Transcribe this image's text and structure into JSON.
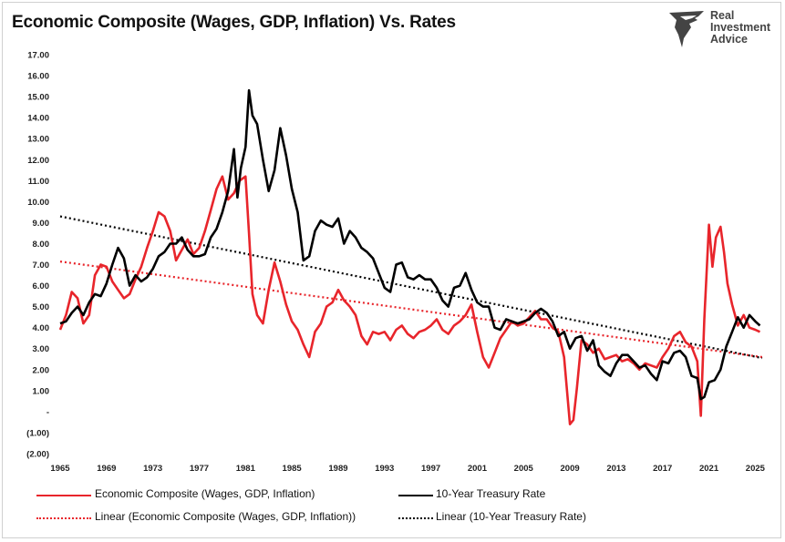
{
  "header": {
    "title": "Economic Composite (Wages, GDP, Inflation) Vs. Rates",
    "logo_lines": [
      "Real",
      "Investment",
      "Advice"
    ]
  },
  "chart_data": {
    "type": "line",
    "title": "Economic Composite (Wages, GDP, Inflation) Vs. Rates",
    "xlim": [
      1965,
      2025.6
    ],
    "ylim": [
      -2,
      17
    ],
    "x_ticks": [
      "1965",
      "1969",
      "1973",
      "1977",
      "1981",
      "1985",
      "1989",
      "1993",
      "1997",
      "2001",
      "2005",
      "2009",
      "2013",
      "2017",
      "2021",
      "2025"
    ],
    "y_ticks": [
      "17.00",
      "16.00",
      "15.00",
      "14.00",
      "13.00",
      "12.00",
      "11.00",
      "10.00",
      "9.00",
      "8.00",
      "7.00",
      "6.00",
      "5.00",
      "4.00",
      "3.00",
      "2.00",
      "1.00",
      "-",
      "(1.00)",
      "(2.00)"
    ],
    "grid": false,
    "legend_position": "bottom",
    "series": [
      {
        "name": "Economic Composite (Wages, GDP, Inflation)",
        "color": "#e8252b",
        "style": "solid",
        "x": [
          1965,
          1965.5,
          1966,
          1966.5,
          1967,
          1967.5,
          1968,
          1968.5,
          1969,
          1969.5,
          1970,
          1970.5,
          1971,
          1971.5,
          1972,
          1972.5,
          1973,
          1973.5,
          1974,
          1974.5,
          1975,
          1975.5,
          1976,
          1976.5,
          1977,
          1977.5,
          1978,
          1978.5,
          1979,
          1979.5,
          1980,
          1980.5,
          1981,
          1981.3,
          1981.6,
          1982,
          1982.5,
          1983,
          1983.5,
          1984,
          1984.5,
          1985,
          1985.5,
          1986,
          1986.5,
          1987,
          1987.5,
          1988,
          1988.5,
          1989,
          1989.5,
          1990,
          1990.5,
          1991,
          1991.5,
          1992,
          1992.5,
          1993,
          1993.5,
          1994,
          1994.5,
          1995,
          1995.5,
          1996,
          1996.5,
          1997,
          1997.5,
          1998,
          1998.5,
          1999,
          1999.5,
          2000,
          2000.5,
          2001,
          2001.5,
          2002,
          2002.5,
          2003,
          2003.5,
          2004,
          2004.5,
          2005,
          2005.5,
          2006,
          2006.5,
          2007,
          2007.5,
          2008,
          2008.5,
          2009,
          2009.3,
          2009.6,
          2010,
          2010.5,
          2011,
          2011.5,
          2012,
          2012.5,
          2013,
          2013.5,
          2014,
          2014.5,
          2015,
          2015.5,
          2016,
          2016.5,
          2017,
          2017.5,
          2018,
          2018.5,
          2019,
          2019.5,
          2020,
          2020.3,
          2020.6,
          2021,
          2021.3,
          2021.6,
          2022,
          2022.3,
          2022.6,
          2023,
          2023.5,
          2024,
          2024.5,
          2025,
          2025.4
        ],
        "y": [
          3.9,
          4.6,
          5.7,
          5.4,
          4.2,
          4.6,
          6.5,
          7.0,
          6.9,
          6.2,
          5.8,
          5.4,
          5.6,
          6.3,
          6.9,
          7.8,
          8.6,
          9.5,
          9.3,
          8.6,
          7.2,
          7.7,
          8.2,
          7.5,
          7.8,
          8.6,
          9.6,
          10.6,
          11.2,
          10.1,
          10.4,
          11.0,
          11.2,
          8.5,
          5.6,
          4.6,
          4.2,
          5.8,
          7.1,
          6.2,
          5.1,
          4.3,
          3.9,
          3.2,
          2.6,
          3.8,
          4.2,
          5.0,
          5.2,
          5.8,
          5.3,
          5.0,
          4.6,
          3.6,
          3.2,
          3.8,
          3.7,
          3.8,
          3.4,
          3.9,
          4.1,
          3.7,
          3.5,
          3.8,
          3.9,
          4.1,
          4.4,
          3.9,
          3.7,
          4.1,
          4.3,
          4.6,
          5.1,
          3.8,
          2.6,
          2.1,
          2.8,
          3.5,
          3.9,
          4.3,
          4.1,
          4.2,
          4.5,
          4.8,
          4.4,
          4.4,
          4.0,
          3.8,
          2.6,
          -0.6,
          -0.4,
          1.1,
          3.4,
          3.2,
          2.8,
          3.0,
          2.5,
          2.6,
          2.7,
          2.4,
          2.5,
          2.3,
          2.0,
          2.3,
          2.2,
          2.1,
          2.6,
          3.0,
          3.6,
          3.8,
          3.3,
          3.1,
          2.4,
          -0.2,
          4.4,
          8.9,
          6.9,
          8.3,
          8.8,
          7.6,
          6.1,
          5.1,
          4.1,
          4.6,
          4.0,
          3.9,
          3.8
        ]
      },
      {
        "name": "10-Year Treasury Rate",
        "color": "#000000",
        "style": "solid",
        "x": [
          1965,
          1965.5,
          1966,
          1966.5,
          1967,
          1967.5,
          1968,
          1968.5,
          1969,
          1969.5,
          1970,
          1970.5,
          1971,
          1971.5,
          1972,
          1972.5,
          1973,
          1973.5,
          1974,
          1974.5,
          1975,
          1975.5,
          1976,
          1976.5,
          1977,
          1977.5,
          1978,
          1978.5,
          1979,
          1979.5,
          1980,
          1980.3,
          1980.6,
          1981,
          1981.3,
          1981.6,
          1982,
          1982.5,
          1983,
          1983.5,
          1984,
          1984.5,
          1985,
          1985.5,
          1986,
          1986.5,
          1987,
          1987.5,
          1988,
          1988.5,
          1989,
          1989.5,
          1990,
          1990.5,
          1991,
          1991.5,
          1992,
          1992.5,
          1993,
          1993.5,
          1994,
          1994.5,
          1995,
          1995.5,
          1996,
          1996.5,
          1997,
          1997.5,
          1998,
          1998.5,
          1999,
          1999.5,
          2000,
          2000.5,
          2001,
          2001.5,
          2002,
          2002.5,
          2003,
          2003.5,
          2004,
          2004.5,
          2005,
          2005.5,
          2006,
          2006.5,
          2007,
          2007.5,
          2008,
          2008.5,
          2009,
          2009.5,
          2010,
          2010.5,
          2011,
          2011.5,
          2012,
          2012.5,
          2013,
          2013.5,
          2014,
          2014.5,
          2015,
          2015.5,
          2016,
          2016.5,
          2017,
          2017.5,
          2018,
          2018.5,
          2019,
          2019.5,
          2020,
          2020.3,
          2020.6,
          2021,
          2021.5,
          2022,
          2022.5,
          2023,
          2023.5,
          2024,
          2024.5,
          2025,
          2025.4
        ],
        "y": [
          4.2,
          4.3,
          4.7,
          5.0,
          4.6,
          5.2,
          5.6,
          5.5,
          6.1,
          7.0,
          7.8,
          7.3,
          6.0,
          6.5,
          6.2,
          6.4,
          6.8,
          7.4,
          7.6,
          8.0,
          8.0,
          8.3,
          7.7,
          7.4,
          7.4,
          7.5,
          8.3,
          8.7,
          9.5,
          10.5,
          12.5,
          10.2,
          11.6,
          12.6,
          15.3,
          14.1,
          13.7,
          12.0,
          10.5,
          11.5,
          13.5,
          12.2,
          10.6,
          9.5,
          7.2,
          7.4,
          8.6,
          9.1,
          8.9,
          8.8,
          9.2,
          8.0,
          8.6,
          8.3,
          7.8,
          7.6,
          7.3,
          6.6,
          5.9,
          5.7,
          7.0,
          7.1,
          6.4,
          6.3,
          6.5,
          6.3,
          6.3,
          5.9,
          5.3,
          5.0,
          5.9,
          6.0,
          6.6,
          5.8,
          5.2,
          5.0,
          5.0,
          4.0,
          3.9,
          4.4,
          4.3,
          4.2,
          4.3,
          4.4,
          4.7,
          4.9,
          4.7,
          4.3,
          3.6,
          3.8,
          3.0,
          3.5,
          3.6,
          2.9,
          3.4,
          2.2,
          1.9,
          1.7,
          2.3,
          2.7,
          2.7,
          2.4,
          2.1,
          2.2,
          1.8,
          1.5,
          2.4,
          2.3,
          2.8,
          2.9,
          2.6,
          1.7,
          1.6,
          0.6,
          0.7,
          1.4,
          1.5,
          2.0,
          3.1,
          3.8,
          4.5,
          4.0,
          4.6,
          4.3,
          4.1
        ]
      },
      {
        "name": "Linear (Economic Composite (Wages, GDP, Inflation))",
        "color": "#e8252b",
        "style": "dotted",
        "x": [
          1965,
          2025.6
        ],
        "y": [
          7.15,
          2.6
        ]
      },
      {
        "name": "Linear (10-Year Treasury Rate)",
        "color": "#000000",
        "style": "dotted",
        "x": [
          1965,
          2025.6
        ],
        "y": [
          9.3,
          2.55
        ]
      }
    ]
  }
}
